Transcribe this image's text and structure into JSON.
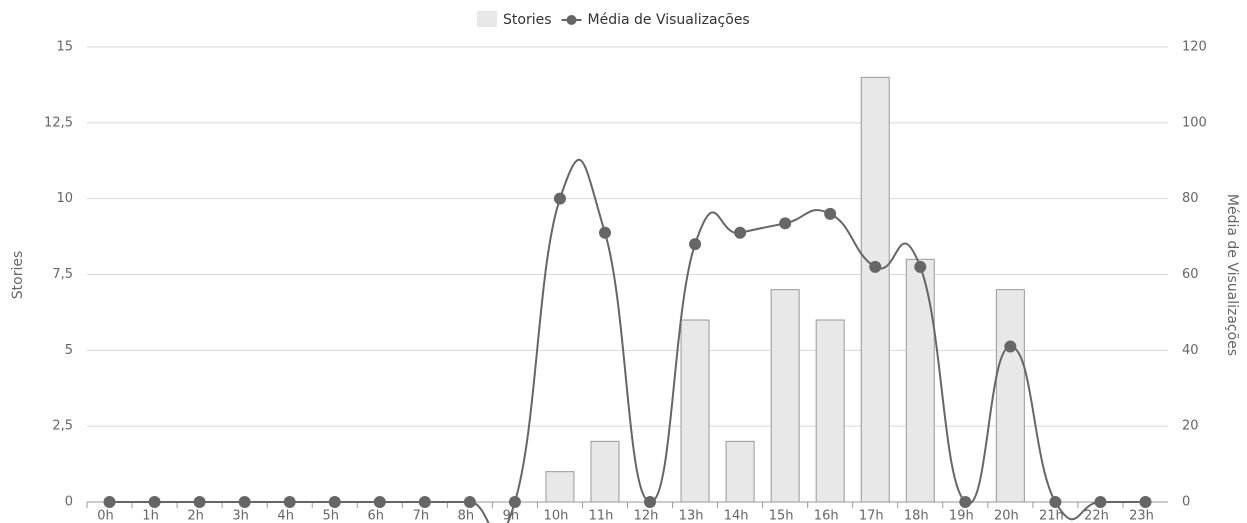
{
  "chart_data": {
    "type": "combo",
    "categories": [
      "0h",
      "1h",
      "2h",
      "3h",
      "4h",
      "5h",
      "6h",
      "7h",
      "8h",
      "9h",
      "10h",
      "11h",
      "12h",
      "13h",
      "14h",
      "15h",
      "16h",
      "17h",
      "18h",
      "19h",
      "20h",
      "21h",
      "22h",
      "23h"
    ],
    "series": [
      {
        "name": "Stories",
        "type": "bar",
        "color": "#e8e8e8",
        "values": [
          0,
          0,
          0,
          0,
          0,
          0,
          0,
          0,
          0,
          0,
          1,
          2,
          0,
          6,
          2,
          7,
          6,
          14,
          8,
          0,
          7,
          0,
          0,
          0
        ]
      },
      {
        "name": "Média de Visualizações",
        "type": "line",
        "axis": "y2",
        "color": "#666666",
        "values": [
          0,
          0,
          0,
          0,
          0,
          0,
          0,
          0,
          0,
          0,
          80,
          71,
          0,
          68,
          71,
          73.5,
          76,
          62,
          62,
          0,
          41,
          0,
          0,
          0
        ]
      }
    ],
    "ylabel": "Stories",
    "y2label": "Média de Visualizações",
    "ylim": [
      0,
      15
    ],
    "yticks": [
      0,
      {
        "value": 2.5,
        "label": "2,5"
      },
      5,
      {
        "value": 7.5,
        "label": "7,5"
      },
      10,
      {
        "value": 12.5,
        "label": "12,5"
      },
      15
    ],
    "y2lim": [
      0,
      120
    ],
    "y2ticks": [
      0,
      20,
      40,
      60,
      80,
      100,
      120
    ],
    "grid": true,
    "legend": "top"
  }
}
